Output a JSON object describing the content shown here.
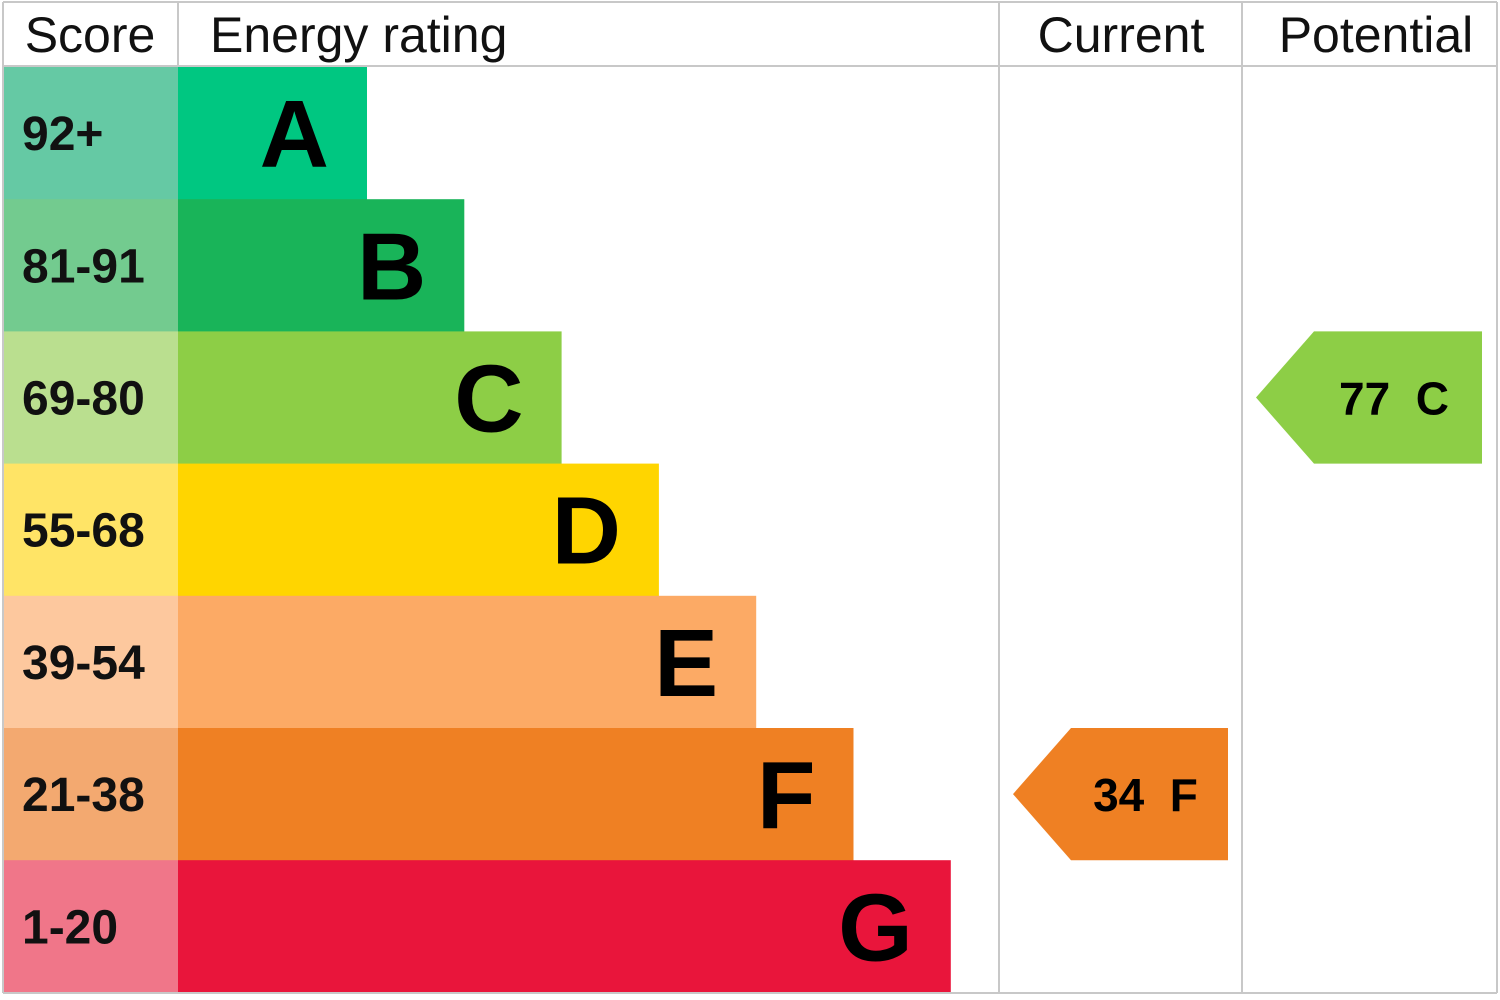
{
  "chart_data": {
    "type": "bar",
    "headers": {
      "score": "Score",
      "rating": "Energy rating",
      "current": "Current",
      "potential": "Potential"
    },
    "bands": [
      {
        "letter": "A",
        "range": "92+",
        "color": "#00c781",
        "score_color": "#65c9a4"
      },
      {
        "letter": "B",
        "range": "81-91",
        "color": "#19b459",
        "score_color": "#73cb8f"
      },
      {
        "letter": "C",
        "range": "69-80",
        "color": "#8dce46",
        "score_color": "#badf8f"
      },
      {
        "letter": "D",
        "range": "55-68",
        "color": "#ffd500",
        "score_color": "#ffe466"
      },
      {
        "letter": "E",
        "range": "39-54",
        "color": "#fcaa65",
        "score_color": "#fdc89e"
      },
      {
        "letter": "F",
        "range": "21-38",
        "color": "#ef8023",
        "score_color": "#f3a970"
      },
      {
        "letter": "G",
        "range": "1-20",
        "color": "#e9153b",
        "score_color": "#f07689"
      }
    ],
    "current": {
      "value": 34,
      "band": "F",
      "label": "34  F",
      "color": "#ef8023"
    },
    "potential": {
      "value": 77,
      "band": "C",
      "label": "77  C",
      "color": "#8dce46"
    }
  }
}
